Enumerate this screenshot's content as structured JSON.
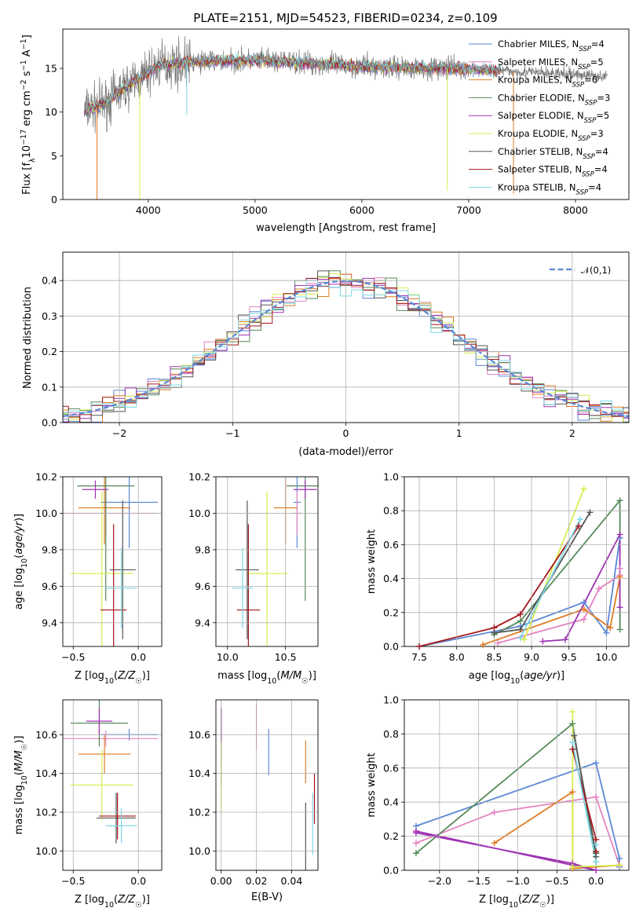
{
  "figure": {
    "title": "PLATE=2151, MJD=54523, FIBERID=0234, z=0.109"
  },
  "colors": {
    "blue": "#5b87d6",
    "orange": "#e07b22",
    "green": "#548a5a",
    "purple": "#9f33b3",
    "yellow": "#d6ee52",
    "gray": "#555555",
    "red": "#a3161a",
    "cyan": "#7ed8e8",
    "pink": "#e482c0",
    "grid": "#b0b0b0"
  },
  "chart_data": [
    {
      "id": "spectrum",
      "type": "line",
      "xlabel": "wavelength [Angstrom, rest frame]",
      "ylabel": "Flux [f_λ10^-17 erg cm^-2 s^-1 A^-1]",
      "xlim": [
        3200,
        8500
      ],
      "ylim": [
        0,
        19.5
      ],
      "xticks": [
        4000,
        5000,
        6000,
        7000,
        8000
      ],
      "yticks": [
        0,
        5,
        10,
        15
      ],
      "grid": false,
      "legend_position": "right",
      "legend": [
        {
          "label": "Chabrier MILES, N_SSP=4",
          "color": "blue"
        },
        {
          "label": "Salpeter MILES, N_SSP=5",
          "color": "pink"
        },
        {
          "label": "Kroupa MILES, N_SSP=6",
          "color": "orange"
        },
        {
          "label": "Chabrier ELODIE, N_SSP=3",
          "color": "green"
        },
        {
          "label": "Salpeter ELODIE, N_SSP=5",
          "color": "purple"
        },
        {
          "label": "Kroupa ELODIE, N_SSP=3",
          "color": "yellow"
        },
        {
          "label": "Chabrier STELIB, N_SSP=4",
          "color": "gray"
        },
        {
          "label": "Salpeter STELIB, N_SSP=4",
          "color": "red"
        },
        {
          "label": "Kroupa STELIB, N_SSP=4",
          "color": "cyan"
        }
      ],
      "continuum": [
        [
          3400,
          10.2
        ],
        [
          3600,
          11.0
        ],
        [
          3800,
          13.0
        ],
        [
          3950,
          14.0
        ],
        [
          4100,
          15.4
        ],
        [
          4500,
          15.8
        ],
        [
          5000,
          15.9
        ],
        [
          5500,
          15.6
        ],
        [
          6000,
          15.2
        ],
        [
          6500,
          15.1
        ],
        [
          7000,
          14.9
        ],
        [
          7500,
          14.6
        ],
        [
          8000,
          14.3
        ],
        [
          8300,
          14.1
        ]
      ],
      "data_range": [
        3400,
        8300
      ],
      "model_range": [
        3400,
        7300
      ],
      "features": [
        {
          "x": 3520,
          "depth": 13,
          "color": "orange"
        },
        {
          "x": 3920,
          "depth": 14,
          "color": "yellow"
        },
        {
          "x": 4360,
          "depth": 6,
          "color": "cyan"
        },
        {
          "x": 6800,
          "depth": 14,
          "color": "yellow"
        },
        {
          "x": 7420,
          "depth": 14,
          "color": "orange"
        }
      ]
    },
    {
      "id": "residuals",
      "type": "line",
      "xlabel": "(data-model)/error",
      "ylabel": "Normed distribution",
      "xlim": [
        -2.5,
        2.5
      ],
      "ylim": [
        0,
        0.48
      ],
      "xticks": [
        -2,
        -1,
        0,
        1,
        2
      ],
      "yticks": [
        0.0,
        0.1,
        0.2,
        0.3,
        0.4
      ],
      "grid": true,
      "legend_position": "top-right",
      "legend_label": "𝒩(0,1)",
      "series_colors": [
        "blue",
        "pink",
        "orange",
        "green",
        "purple",
        "yellow",
        "gray",
        "red",
        "cyan"
      ]
    },
    {
      "id": "age_vs_Z",
      "type": "scatter",
      "xlabel": "Z [log10(Z/Z☉)]",
      "ylabel": "age  [log10(age/yr)]",
      "xlim": [
        -0.58,
        0.18
      ],
      "ylim": [
        9.27,
        10.2
      ],
      "xticks": [
        -0.5,
        0.0
      ],
      "yticks": [
        9.4,
        9.6,
        9.8,
        10.0,
        10.2
      ],
      "grid": true,
      "points": [
        {
          "color": "blue",
          "x": -0.07,
          "xerr": 0.22,
          "y": 10.06,
          "yerr": 0.25
        },
        {
          "color": "pink",
          "x": -0.25,
          "xerr": 0.4,
          "y": 10.0,
          "yerr": 0.12
        },
        {
          "color": "orange",
          "x": -0.26,
          "xerr": 0.2,
          "y": 10.03,
          "yerr": 0.2
        },
        {
          "color": "green",
          "x": -0.25,
          "xerr": 0.22,
          "y": 10.15,
          "yerr": 0.63
        },
        {
          "color": "purple",
          "x": -0.33,
          "xerr": 0.1,
          "y": 10.13,
          "yerr": 0.05
        },
        {
          "color": "yellow",
          "x": -0.28,
          "xerr": 0.24,
          "y": 9.67,
          "yerr": 0.45
        },
        {
          "color": "gray",
          "x": -0.12,
          "xerr": 0.1,
          "y": 9.69,
          "yerr": 0.38
        },
        {
          "color": "red",
          "x": -0.19,
          "xerr": 0.1,
          "y": 9.47,
          "yerr": 0.47
        },
        {
          "color": "cyan",
          "x": -0.13,
          "xerr": 0.12,
          "y": 9.59,
          "yerr": 0.22
        }
      ]
    },
    {
      "id": "age_vs_mass",
      "type": "scatter",
      "xlabel": "mass [log10(M/M☉)]",
      "ylabel": "",
      "xlim": [
        9.9,
        10.78
      ],
      "ylim": [
        9.27,
        10.2
      ],
      "xticks": [
        10.0,
        10.5
      ],
      "yticks": [
        9.4,
        9.6,
        9.8,
        10.0,
        10.2
      ],
      "grid": true,
      "points": [
        {
          "color": "blue",
          "x": 10.6,
          "xerr": 0.03,
          "y": 10.06,
          "yerr": 0.25
        },
        {
          "color": "pink",
          "x": 10.6,
          "xerr": 0.04,
          "y": 10.0,
          "yerr": 0.12
        },
        {
          "color": "orange",
          "x": 10.5,
          "xerr": 0.1,
          "y": 10.03,
          "yerr": 0.2
        },
        {
          "color": "green",
          "x": 10.67,
          "xerr": 0.16,
          "y": 10.15,
          "yerr": 0.63
        },
        {
          "color": "purple",
          "x": 10.67,
          "xerr": 0.1,
          "y": 10.13,
          "yerr": 0.05
        },
        {
          "color": "yellow",
          "x": 10.34,
          "xerr": 0.18,
          "y": 9.67,
          "yerr": 0.45
        },
        {
          "color": "gray",
          "x": 10.17,
          "xerr": 0.1,
          "y": 9.69,
          "yerr": 0.38
        },
        {
          "color": "red",
          "x": 10.18,
          "xerr": 0.1,
          "y": 9.47,
          "yerr": 0.47
        },
        {
          "color": "cyan",
          "x": 10.13,
          "xerr": 0.09,
          "y": 9.59,
          "yerr": 0.22
        }
      ]
    },
    {
      "id": "weight_vs_age",
      "type": "line",
      "xlabel": "age  [log10(age/yr)]",
      "ylabel": "mass weight",
      "xlim": [
        7.3,
        10.3
      ],
      "ylim": [
        0,
        1.0
      ],
      "xticks": [
        7.5,
        8.0,
        8.5,
        9.0,
        9.5,
        10.0
      ],
      "yticks": [
        0.0,
        0.2,
        0.4,
        0.6,
        0.8,
        1.0
      ],
      "grid": true,
      "series": [
        {
          "color": "blue",
          "points": [
            [
              7.5,
              0.0
            ],
            [
              8.85,
              0.12
            ],
            [
              9.7,
              0.26
            ],
            [
              10.0,
              0.08
            ],
            [
              10.18,
              0.64
            ]
          ]
        },
        {
          "color": "pink",
          "points": [
            [
              8.55,
              0.02
            ],
            [
              9.7,
              0.16
            ],
            [
              9.9,
              0.34
            ],
            [
              10.18,
              0.42
            ],
            [
              10.18,
              0.46
            ]
          ]
        },
        {
          "color": "orange",
          "points": [
            [
              8.35,
              0.01
            ],
            [
              9.7,
              0.22
            ],
            [
              10.05,
              0.11
            ],
            [
              10.18,
              0.41
            ]
          ]
        },
        {
          "color": "green",
          "points": [
            [
              8.5,
              0.07
            ],
            [
              8.85,
              0.15
            ],
            [
              10.18,
              0.86
            ],
            [
              10.18,
              0.1
            ]
          ]
        },
        {
          "color": "purple",
          "points": [
            [
              9.15,
              0.03
            ],
            [
              9.45,
              0.04
            ],
            [
              10.18,
              0.66
            ],
            [
              10.18,
              0.23
            ]
          ]
        },
        {
          "color": "yellow",
          "points": [
            [
              8.9,
              0.04
            ],
            [
              9.7,
              0.93
            ]
          ]
        },
        {
          "color": "gray",
          "points": [
            [
              8.5,
              0.08
            ],
            [
              8.85,
              0.1
            ],
            [
              9.78,
              0.79
            ]
          ]
        },
        {
          "color": "red",
          "points": [
            [
              7.5,
              0.0
            ],
            [
              8.5,
              0.11
            ],
            [
              8.85,
              0.19
            ],
            [
              9.63,
              0.71
            ]
          ]
        },
        {
          "color": "cyan",
          "points": [
            [
              8.85,
              0.05
            ],
            [
              9.65,
              0.75
            ]
          ]
        }
      ]
    },
    {
      "id": "mass_vs_Z",
      "type": "scatter",
      "xlabel": "Z [log10(Z/Z☉)]",
      "ylabel": "mass [log10(M/M☉)]",
      "xlim": [
        -0.58,
        0.18
      ],
      "ylim": [
        9.9,
        10.78
      ],
      "xticks": [
        -0.5,
        0.0
      ],
      "yticks": [
        10.0,
        10.2,
        10.4,
        10.6
      ],
      "grid": true,
      "points": [
        {
          "color": "blue",
          "x": -0.07,
          "xerr": 0.22,
          "y": 10.6,
          "yerr": 0.03
        },
        {
          "color": "pink",
          "x": -0.25,
          "xerr": 0.4,
          "y": 10.58,
          "yerr": 0.04
        },
        {
          "color": "orange",
          "x": -0.26,
          "xerr": 0.2,
          "y": 10.5,
          "yerr": 0.1
        },
        {
          "color": "green",
          "x": -0.3,
          "xerr": 0.22,
          "y": 10.66,
          "yerr": 0.12
        },
        {
          "color": "purple",
          "x": -0.3,
          "xerr": 0.1,
          "y": 10.67,
          "yerr": 0.07
        },
        {
          "color": "yellow",
          "x": -0.28,
          "xerr": 0.24,
          "y": 10.34,
          "yerr": 0.18
        },
        {
          "color": "gray",
          "x": -0.17,
          "xerr": 0.15,
          "y": 10.17,
          "yerr": 0.13
        },
        {
          "color": "red",
          "x": -0.16,
          "xerr": 0.14,
          "y": 10.18,
          "yerr": 0.12
        },
        {
          "color": "cyan",
          "x": -0.13,
          "xerr": 0.12,
          "y": 10.13,
          "yerr": 0.09
        }
      ]
    },
    {
      "id": "mass_vs_EBV",
      "type": "scatter",
      "xlabel": "E(B-V)",
      "ylabel": "",
      "xlim": [
        -0.003,
        0.055
      ],
      "ylim": [
        9.9,
        10.78
      ],
      "xticks": [
        0.0,
        0.02,
        0.04
      ],
      "yticks": [
        10.0,
        10.2,
        10.4,
        10.6
      ],
      "grid": true,
      "points": [
        {
          "color": "blue",
          "x": 0.027,
          "y": 10.51,
          "yerr": 0.12
        },
        {
          "color": "pink",
          "x": 0.02,
          "y": 10.64,
          "yerr": 0.12
        },
        {
          "color": "orange",
          "x": 0.048,
          "y": 10.46,
          "yerr": 0.11
        },
        {
          "color": "green",
          "x": 0.0,
          "y": 10.53,
          "yerr": 0.2
        },
        {
          "color": "purple",
          "x": 0.0,
          "y": 10.6,
          "yerr": 0.14
        },
        {
          "color": "yellow",
          "x": 0.0,
          "y": 10.38,
          "yerr": 0.18
        },
        {
          "color": "gray",
          "x": 0.048,
          "y": 10.05,
          "yerr": 0.2
        },
        {
          "color": "red",
          "x": 0.053,
          "y": 10.27,
          "yerr": 0.13
        },
        {
          "color": "cyan",
          "x": 0.052,
          "y": 10.14,
          "yerr": 0.16
        }
      ]
    },
    {
      "id": "weight_vs_Z",
      "type": "line",
      "xlabel": "Z [log10(Z/Z☉)]",
      "ylabel": "mass weight",
      "xlim": [
        -2.45,
        0.42
      ],
      "ylim": [
        0,
        1.0
      ],
      "xticks": [
        -2.0,
        -1.5,
        -1.0,
        -0.5,
        0.0
      ],
      "yticks": [
        0.0,
        0.2,
        0.4,
        0.6,
        0.8,
        1.0
      ],
      "grid": true,
      "series": [
        {
          "color": "blue",
          "points": [
            [
              -2.3,
              0.26
            ],
            [
              0.0,
              0.63
            ],
            [
              0.3,
              0.07
            ],
            [
              0.3,
              0.02
            ]
          ]
        },
        {
          "color": "pink",
          "points": [
            [
              -2.3,
              0.16
            ],
            [
              -1.3,
              0.34
            ],
            [
              0.0,
              0.43
            ],
            [
              0.3,
              0.03
            ]
          ]
        },
        {
          "color": "orange",
          "points": [
            [
              -1.3,
              0.16
            ],
            [
              -0.3,
              0.46
            ],
            [
              -0.3,
              0.01
            ],
            [
              0.3,
              0.03
            ]
          ]
        },
        {
          "color": "green",
          "points": [
            [
              -2.3,
              0.1
            ],
            [
              -0.3,
              0.86
            ],
            [
              0.0,
              0.05
            ],
            [
              0.0,
              0.1
            ]
          ]
        },
        {
          "color": "purple",
          "points": [
            [
              -2.3,
              0.23
            ],
            [
              0.0,
              0.0
            ],
            [
              -0.3,
              0.04
            ],
            [
              -2.3,
              0.22
            ]
          ]
        },
        {
          "color": "yellow",
          "points": [
            [
              -0.3,
              0.93
            ],
            [
              -0.3,
              0.02
            ],
            [
              0.3,
              0.03
            ]
          ]
        },
        {
          "color": "gray",
          "points": [
            [
              -0.28,
              0.79
            ],
            [
              0.0,
              0.1
            ],
            [
              0.0,
              0.08
            ]
          ]
        },
        {
          "color": "red",
          "points": [
            [
              -0.3,
              0.71
            ],
            [
              0.0,
              0.18
            ],
            [
              0.0,
              0.11
            ]
          ]
        },
        {
          "color": "cyan",
          "points": [
            [
              -0.3,
              0.75
            ],
            [
              0.0,
              0.05
            ],
            [
              0.0,
              0.15
            ]
          ]
        }
      ]
    }
  ]
}
